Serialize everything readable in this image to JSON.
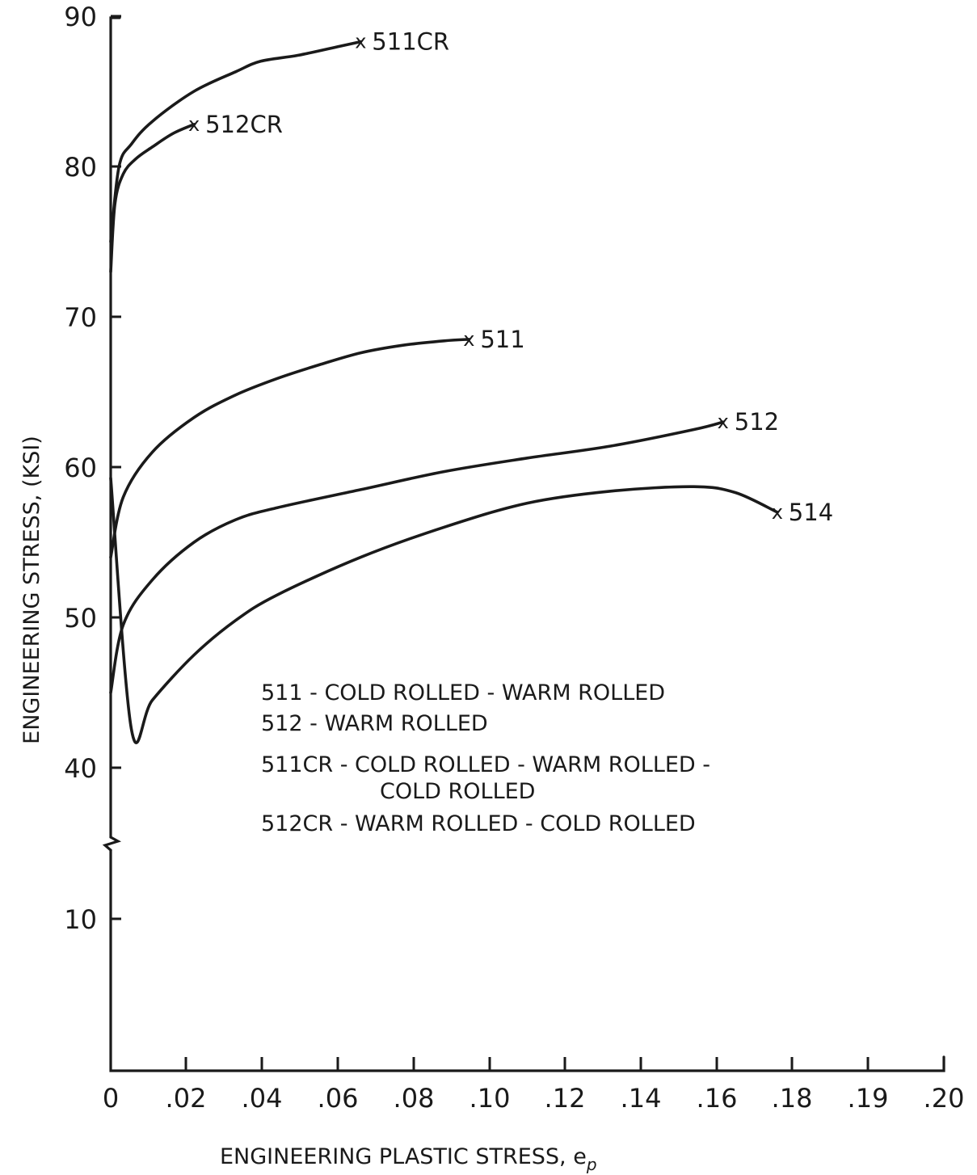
{
  "chart_data": {
    "type": "line",
    "title": "",
    "xlabel": "ENGINEERING PLASTIC STRESS, e",
    "xlabel_subscript": "p",
    "ylabel": "ENGINEERING STRESS, (KSI)",
    "xlim": [
      0,
      0.2
    ],
    "ylim": [
      0,
      90
    ],
    "axis_break": "between 10 and 40 on y-axis",
    "x_ticks": [
      0,
      0.02,
      0.04,
      0.06,
      0.08,
      0.1,
      0.12,
      0.14,
      0.16,
      0.18,
      0.19,
      0.2
    ],
    "x_tick_labels": [
      "0",
      ".02",
      ".04",
      ".06",
      ".08",
      ".10",
      ".12",
      ".14",
      ".16",
      ".18",
      ".19",
      ".20"
    ],
    "y_ticks": [
      10,
      40,
      50,
      60,
      70,
      80,
      90
    ],
    "y_tick_labels": [
      "10",
      "40",
      "50",
      "60",
      "70",
      "80",
      "90"
    ],
    "grid": false,
    "end_marker": "x",
    "series": [
      {
        "name": "511CR",
        "x": [
          0,
          0.002,
          0.005,
          0.01,
          0.02,
          0.03,
          0.036,
          0.045,
          0.055,
          0.06
        ],
        "y": [
          75,
          80,
          81.5,
          83,
          85,
          86.3,
          87,
          87.4,
          88,
          88.3
        ]
      },
      {
        "name": "512CR",
        "x": [
          0,
          0.001,
          0.003,
          0.006,
          0.01,
          0.015,
          0.02
        ],
        "y": [
          73,
          77.5,
          79.5,
          80.5,
          81.3,
          82.2,
          82.8
        ]
      },
      {
        "name": "511",
        "x": [
          0,
          0.003,
          0.01,
          0.02,
          0.03,
          0.04,
          0.05,
          0.06,
          0.07,
          0.08,
          0.086
        ],
        "y": [
          54,
          58,
          61,
          63.3,
          64.8,
          65.9,
          66.8,
          67.6,
          68.1,
          68.4,
          68.5
        ]
      },
      {
        "name": "512",
        "x": [
          0,
          0.003,
          0.01,
          0.02,
          0.03,
          0.04,
          0.06,
          0.08,
          0.1,
          0.12,
          0.14,
          0.147
        ],
        "y": [
          45,
          49.5,
          52.5,
          55,
          56.5,
          57.3,
          58.5,
          59.7,
          60.6,
          61.4,
          62.5,
          63
        ]
      },
      {
        "name": "514",
        "x": [
          0,
          0.005,
          0.01,
          0.02,
          0.03,
          0.04,
          0.06,
          0.08,
          0.1,
          0.12,
          0.14,
          0.15,
          0.16
        ],
        "y": [
          39,
          42.5,
          44.5,
          47.5,
          49.8,
          51.5,
          54,
          56,
          57.6,
          58.4,
          58.7,
          58.3,
          57
        ]
      }
    ],
    "legend": [
      {
        "key": "511",
        "text": "511 - COLD ROLLED - WARM ROLLED"
      },
      {
        "key": "512",
        "text": "512 - WARM ROLLED"
      },
      {
        "key": "511CR",
        "text": "511CR - COLD ROLLED - WARM ROLLED -",
        "continuation": "COLD ROLLED"
      },
      {
        "key": "512CR",
        "text": "512CR - WARM ROLLED - COLD ROLLED"
      }
    ]
  }
}
